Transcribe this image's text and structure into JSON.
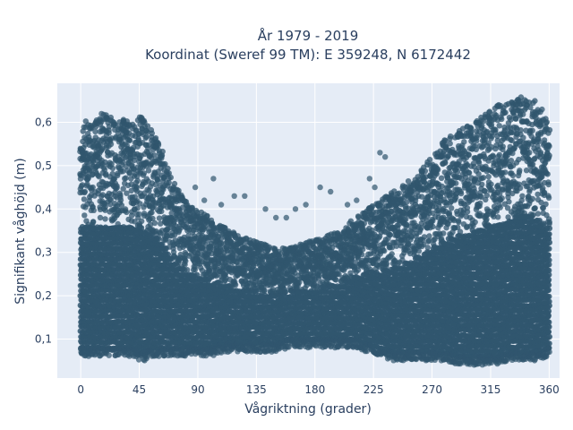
{
  "chart_data": {
    "type": "scatter",
    "title_line1": "År 1979 - 2019",
    "title_line2": "Koordinat (Sweref 99 TM): E 359248, N 6172442",
    "xlabel": "Vågriktning (grader)",
    "ylabel": "Signifikant våghöjd (m)",
    "xlim": [
      -18,
      368
    ],
    "ylim": [
      0.01,
      0.69
    ],
    "x_ticks": [
      0,
      45,
      90,
      135,
      180,
      225,
      270,
      315,
      360
    ],
    "x_tick_labels": [
      "0",
      "45",
      "90",
      "135",
      "180",
      "225",
      "270",
      "315",
      "360"
    ],
    "y_ticks": [
      0.1,
      0.2,
      0.3,
      0.4,
      0.5,
      0.6
    ],
    "y_tick_labels": [
      "0,1",
      "0,2",
      "0,3",
      "0,4",
      "0,5",
      "0,6"
    ],
    "grid": true,
    "marker_color": "#30566e",
    "plot_bg": "#e5ecf6",
    "envelope": {
      "x": [
        0,
        10,
        20,
        30,
        40,
        45,
        50,
        55,
        60,
        70,
        80,
        90,
        100,
        110,
        120,
        130,
        140,
        150,
        160,
        170,
        180,
        190,
        200,
        210,
        220,
        230,
        240,
        250,
        260,
        270,
        280,
        290,
        300,
        310,
        320,
        330,
        340,
        350,
        360
      ],
      "y_max": [
        0.6,
        0.61,
        0.62,
        0.61,
        0.6,
        0.62,
        0.6,
        0.58,
        0.56,
        0.47,
        0.42,
        0.4,
        0.38,
        0.36,
        0.34,
        0.33,
        0.32,
        0.31,
        0.31,
        0.32,
        0.33,
        0.34,
        0.35,
        0.38,
        0.4,
        0.42,
        0.44,
        0.46,
        0.49,
        0.52,
        0.56,
        0.58,
        0.6,
        0.62,
        0.64,
        0.65,
        0.66,
        0.65,
        0.6
      ],
      "y_min": [
        0.06,
        0.06,
        0.06,
        0.06,
        0.06,
        0.05,
        0.05,
        0.06,
        0.06,
        0.06,
        0.06,
        0.06,
        0.06,
        0.07,
        0.07,
        0.07,
        0.07,
        0.07,
        0.08,
        0.08,
        0.08,
        0.08,
        0.08,
        0.08,
        0.07,
        0.06,
        0.05,
        0.05,
        0.05,
        0.05,
        0.05,
        0.04,
        0.04,
        0.04,
        0.04,
        0.05,
        0.05,
        0.05,
        0.06
      ]
    },
    "outliers": [
      {
        "x": 88,
        "y": 0.45
      },
      {
        "x": 95,
        "y": 0.42
      },
      {
        "x": 102,
        "y": 0.47
      },
      {
        "x": 108,
        "y": 0.41
      },
      {
        "x": 118,
        "y": 0.43
      },
      {
        "x": 126,
        "y": 0.43
      },
      {
        "x": 142,
        "y": 0.4
      },
      {
        "x": 150,
        "y": 0.38
      },
      {
        "x": 158,
        "y": 0.38
      },
      {
        "x": 165,
        "y": 0.4
      },
      {
        "x": 173,
        "y": 0.41
      },
      {
        "x": 184,
        "y": 0.45
      },
      {
        "x": 192,
        "y": 0.44
      },
      {
        "x": 205,
        "y": 0.41
      },
      {
        "x": 212,
        "y": 0.42
      },
      {
        "x": 222,
        "y": 0.47
      },
      {
        "x": 226,
        "y": 0.45
      },
      {
        "x": 230,
        "y": 0.53
      },
      {
        "x": 234,
        "y": 0.52
      },
      {
        "x": 16,
        "y": 0.62
      }
    ]
  }
}
